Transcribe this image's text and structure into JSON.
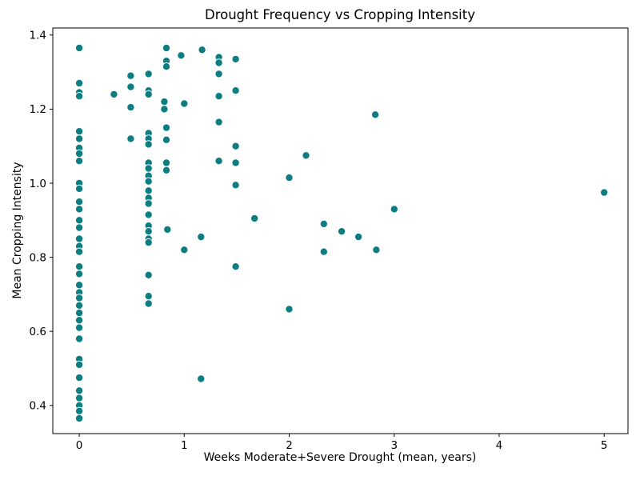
{
  "chart_data": {
    "type": "scatter",
    "title": "Drought Frequency vs Cropping Intensity",
    "xlabel": "Weeks Moderate+Severe Drought (mean, years)",
    "ylabel": "Mean Cropping Intensity",
    "xlim": [
      -0.252,
      5.227
    ],
    "ylim": [
      0.324,
      1.419
    ],
    "xticks": [
      0,
      1,
      2,
      3,
      4,
      5
    ],
    "xtick_labels": [
      "0",
      "1",
      "2",
      "3",
      "4",
      "5"
    ],
    "yticks": [
      0.4,
      0.6,
      0.8,
      1.0,
      1.2,
      1.4
    ],
    "ytick_labels": [
      "0.4",
      "0.6",
      "0.8",
      "1.0",
      "1.2",
      "1.4"
    ],
    "grid": false,
    "legend": "none",
    "marker_color": "#0d7d82",
    "marker_edge_color": "#ffffff",
    "points": [
      [
        0,
        1.365
      ],
      [
        0,
        1.27
      ],
      [
        0,
        1.245
      ],
      [
        0,
        1.235
      ],
      [
        0,
        1.14
      ],
      [
        0,
        1.12
      ],
      [
        0,
        1.095
      ],
      [
        0,
        1.08
      ],
      [
        0,
        1.06
      ],
      [
        0,
        1.0
      ],
      [
        0,
        0.985
      ],
      [
        0,
        0.95
      ],
      [
        0,
        0.93
      ],
      [
        0,
        0.9
      ],
      [
        0,
        0.88
      ],
      [
        0,
        0.85
      ],
      [
        0,
        0.83
      ],
      [
        0,
        0.815
      ],
      [
        0,
        0.775
      ],
      [
        0,
        0.755
      ],
      [
        0,
        0.725
      ],
      [
        0,
        0.705
      ],
      [
        0,
        0.69
      ],
      [
        0,
        0.67
      ],
      [
        0,
        0.65
      ],
      [
        0,
        0.63
      ],
      [
        0,
        0.61
      ],
      [
        0,
        0.58
      ],
      [
        0,
        0.525
      ],
      [
        0,
        0.51
      ],
      [
        0,
        0.475
      ],
      [
        0,
        0.44
      ],
      [
        0,
        0.42
      ],
      [
        0,
        0.4
      ],
      [
        0,
        0.385
      ],
      [
        0,
        0.365
      ],
      [
        0.33,
        1.24
      ],
      [
        0.49,
        1.29
      ],
      [
        0.49,
        1.26
      ],
      [
        0.49,
        1.205
      ],
      [
        0.49,
        1.12
      ],
      [
        0.66,
        1.295
      ],
      [
        0.66,
        1.25
      ],
      [
        0.66,
        1.24
      ],
      [
        0.66,
        1.135
      ],
      [
        0.66,
        1.12
      ],
      [
        0.66,
        1.105
      ],
      [
        0.66,
        1.055
      ],
      [
        0.66,
        1.04
      ],
      [
        0.66,
        1.02
      ],
      [
        0.66,
        1.005
      ],
      [
        0.66,
        0.98
      ],
      [
        0.66,
        0.96
      ],
      [
        0.66,
        0.945
      ],
      [
        0.66,
        0.915
      ],
      [
        0.66,
        0.885
      ],
      [
        0.66,
        0.87
      ],
      [
        0.66,
        0.85
      ],
      [
        0.66,
        0.84
      ],
      [
        0.66,
        0.752
      ],
      [
        0.66,
        0.695
      ],
      [
        0.66,
        0.675
      ],
      [
        0.83,
        1.365
      ],
      [
        0.83,
        1.33
      ],
      [
        0.83,
        1.315
      ],
      [
        0.81,
        1.22
      ],
      [
        0.81,
        1.2
      ],
      [
        0.83,
        1.15
      ],
      [
        0.83,
        1.117
      ],
      [
        0.83,
        1.055
      ],
      [
        0.83,
        1.035
      ],
      [
        0.84,
        0.875
      ],
      [
        0.97,
        1.345
      ],
      [
        1.0,
        1.215
      ],
      [
        1.17,
        1.36
      ],
      [
        1.33,
        1.34
      ],
      [
        1.33,
        1.325
      ],
      [
        1.49,
        1.335
      ],
      [
        1.33,
        1.295
      ],
      [
        1.49,
        1.25
      ],
      [
        1.33,
        1.235
      ],
      [
        1.33,
        1.165
      ],
      [
        1.49,
        1.1
      ],
      [
        1.33,
        1.06
      ],
      [
        1.49,
        1.055
      ],
      [
        1.49,
        0.995
      ],
      [
        1.0,
        0.82
      ],
      [
        1.16,
        0.855
      ],
      [
        1.16,
        0.472
      ],
      [
        1.49,
        0.775
      ],
      [
        1.67,
        0.905
      ],
      [
        2.0,
        1.015
      ],
      [
        2.16,
        1.075
      ],
      [
        2.0,
        0.66
      ],
      [
        2.33,
        0.89
      ],
      [
        2.33,
        0.815
      ],
      [
        2.5,
        0.87
      ],
      [
        2.66,
        0.855
      ],
      [
        2.82,
        1.185
      ],
      [
        2.83,
        0.82
      ],
      [
        3.0,
        0.93
      ],
      [
        5.0,
        0.975
      ]
    ]
  }
}
